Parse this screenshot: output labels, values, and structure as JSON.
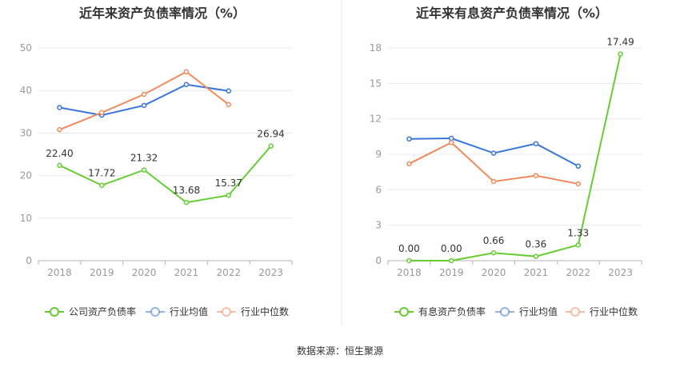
{
  "source_label": "数据来源：恒生聚源",
  "colors": {
    "company": "#66cc33",
    "industry_avg": "#3a75d8",
    "industry_median": "#f08a5d",
    "grid": "#e6e8ef",
    "axis": "#b3b3b3",
    "divider": "#e8e8e8"
  },
  "chart_data": [
    {
      "type": "line",
      "title": "近年来资产负债率情况（%）",
      "categories": [
        "2018",
        "2019",
        "2020",
        "2021",
        "2022",
        "2023"
      ],
      "yticks": [
        0,
        10,
        20,
        30,
        40,
        50
      ],
      "ylim": [
        0,
        50
      ],
      "grid": true,
      "legend_position": "bottom",
      "series": [
        {
          "name": "公司资产负债率",
          "color_key": "company",
          "values": [
            22.4,
            17.72,
            21.32,
            13.68,
            15.37,
            26.94
          ],
          "labels": [
            "22.40",
            "17.72",
            "21.32",
            "13.68",
            "15.37",
            "26.94"
          ]
        },
        {
          "name": "行业均值",
          "color_key": "industry_avg",
          "values": [
            36.0,
            34.2,
            36.5,
            41.4,
            39.9,
            null
          ]
        },
        {
          "name": "行业中位数",
          "color_key": "industry_median",
          "values": [
            30.8,
            34.8,
            39.1,
            44.4,
            36.7,
            null
          ]
        }
      ]
    },
    {
      "type": "line",
      "title": "近年来有息资产负债率情况（%）",
      "categories": [
        "2018",
        "2019",
        "2020",
        "2021",
        "2022",
        "2023"
      ],
      "yticks": [
        0,
        3,
        6,
        9,
        12,
        15,
        18
      ],
      "ylim": [
        0,
        18
      ],
      "grid": true,
      "legend_position": "bottom",
      "series": [
        {
          "name": "有息资产负债率",
          "color_key": "company",
          "values": [
            0.0,
            0.0,
            0.66,
            0.36,
            1.33,
            17.49
          ],
          "labels": [
            "0.00",
            "0.00",
            "0.66",
            "0.36",
            "1.33",
            "17.49"
          ]
        },
        {
          "name": "行业均值",
          "color_key": "industry_avg",
          "values": [
            10.3,
            10.35,
            9.1,
            9.9,
            8.0,
            null
          ]
        },
        {
          "name": "行业中位数",
          "color_key": "industry_median",
          "values": [
            8.2,
            10.0,
            6.7,
            7.2,
            6.5,
            null
          ]
        }
      ]
    }
  ]
}
